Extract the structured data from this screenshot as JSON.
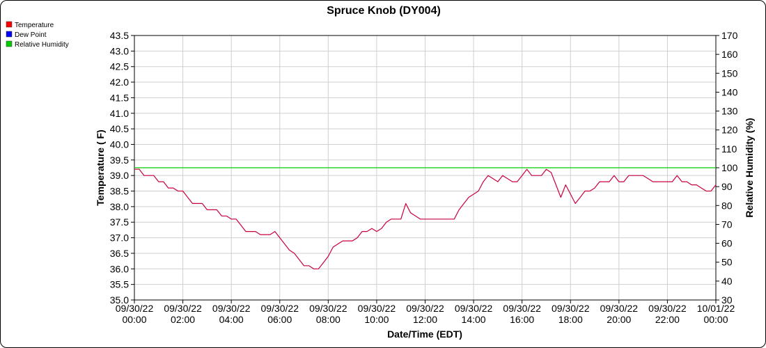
{
  "chart_data": {
    "type": "line",
    "title": "Spruce Knob (DY004)",
    "xlabel": "Date/Time (EDT)",
    "ylabel": "Temperature ( F)",
    "y2label": "Relative Humidity (%)",
    "ylim": [
      35.0,
      43.5
    ],
    "y2lim": [
      30,
      170
    ],
    "y_ticks": [
      "35.0",
      "35.5",
      "36.0",
      "36.5",
      "37.0",
      "37.5",
      "38.0",
      "38.5",
      "39.0",
      "39.5",
      "40.0",
      "40.5",
      "41.0",
      "41.5",
      "42.0",
      "42.5",
      "43.0",
      "43.5"
    ],
    "y2_ticks": [
      "30",
      "40",
      "50",
      "60",
      "70",
      "80",
      "90",
      "100",
      "110",
      "120",
      "130",
      "140",
      "150",
      "160",
      "170"
    ],
    "x_hours_range": [
      0,
      24
    ],
    "x_ticks": [
      {
        "date": "09/30/22",
        "time": "00:00"
      },
      {
        "date": "09/30/22",
        "time": "02:00"
      },
      {
        "date": "09/30/22",
        "time": "04:00"
      },
      {
        "date": "09/30/22",
        "time": "06:00"
      },
      {
        "date": "09/30/22",
        "time": "08:00"
      },
      {
        "date": "09/30/22",
        "time": "10:00"
      },
      {
        "date": "09/30/22",
        "time": "12:00"
      },
      {
        "date": "09/30/22",
        "time": "14:00"
      },
      {
        "date": "09/30/22",
        "time": "16:00"
      },
      {
        "date": "09/30/22",
        "time": "18:00"
      },
      {
        "date": "09/30/22",
        "time": "20:00"
      },
      {
        "date": "09/30/22",
        "time": "22:00"
      },
      {
        "date": "10/01/22",
        "time": "00:00"
      }
    ],
    "grid": true,
    "legend_position": "top-left",
    "legend": [
      {
        "name": "Temperature",
        "color": "#ff0000"
      },
      {
        "name": "Dew Point",
        "color": "#0000ff"
      },
      {
        "name": "Relative Humidity",
        "color": "#00cc00"
      }
    ],
    "series": [
      {
        "name": "Temperature",
        "color": "#c8003c",
        "axis": "left",
        "x": [
          0.0,
          0.2,
          0.4,
          0.6,
          0.8,
          1.0,
          1.2,
          1.4,
          1.6,
          1.8,
          2.0,
          2.2,
          2.4,
          2.6,
          2.8,
          3.0,
          3.2,
          3.4,
          3.6,
          3.8,
          4.0,
          4.2,
          4.4,
          4.6,
          4.8,
          5.0,
          5.2,
          5.4,
          5.6,
          5.8,
          6.0,
          6.2,
          6.4,
          6.6,
          6.8,
          7.0,
          7.2,
          7.4,
          7.6,
          7.8,
          8.0,
          8.2,
          8.4,
          8.6,
          8.8,
          9.0,
          9.2,
          9.4,
          9.6,
          9.8,
          10.0,
          10.2,
          10.4,
          10.6,
          10.8,
          11.0,
          11.2,
          11.4,
          11.6,
          11.8,
          12.0,
          12.2,
          12.4,
          12.6,
          12.8,
          13.0,
          13.2,
          13.4,
          13.6,
          13.8,
          14.0,
          14.2,
          14.4,
          14.6,
          14.8,
          15.0,
          15.2,
          15.4,
          15.6,
          15.8,
          16.0,
          16.2,
          16.4,
          16.6,
          16.8,
          17.0,
          17.2,
          17.4,
          17.6,
          17.8,
          18.0,
          18.2,
          18.4,
          18.6,
          18.8,
          19.0,
          19.2,
          19.4,
          19.6,
          19.8,
          20.0,
          20.2,
          20.4,
          20.6,
          20.8,
          21.0,
          21.2,
          21.4,
          21.6,
          21.8,
          22.0,
          22.2,
          22.4,
          22.6,
          22.8,
          23.0,
          23.2,
          23.4,
          23.6,
          23.8,
          24.0
        ],
        "values": [
          39.2,
          39.2,
          39.0,
          39.0,
          39.0,
          38.8,
          38.8,
          38.6,
          38.6,
          38.5,
          38.5,
          38.3,
          38.1,
          38.1,
          38.1,
          37.9,
          37.9,
          37.9,
          37.7,
          37.7,
          37.6,
          37.6,
          37.4,
          37.2,
          37.2,
          37.2,
          37.1,
          37.1,
          37.1,
          37.2,
          37.0,
          36.8,
          36.6,
          36.5,
          36.3,
          36.1,
          36.1,
          36.0,
          36.0,
          36.2,
          36.4,
          36.7,
          36.8,
          36.9,
          36.9,
          36.9,
          37.0,
          37.2,
          37.2,
          37.3,
          37.2,
          37.3,
          37.5,
          37.6,
          37.6,
          37.6,
          38.1,
          37.8,
          37.7,
          37.6,
          37.6,
          37.6,
          37.6,
          37.6,
          37.6,
          37.6,
          37.6,
          37.9,
          38.1,
          38.3,
          38.4,
          38.5,
          38.8,
          39.0,
          38.9,
          38.8,
          39.0,
          38.9,
          38.8,
          38.8,
          39.0,
          39.2,
          39.0,
          39.0,
          39.0,
          39.2,
          39.1,
          38.7,
          38.3,
          38.7,
          38.4,
          38.1,
          38.3,
          38.5,
          38.5,
          38.6,
          38.8,
          38.8,
          38.8,
          39.0,
          38.8,
          38.8,
          39.0,
          39.0,
          39.0,
          39.0,
          38.9,
          38.8,
          38.8,
          38.8,
          38.8,
          38.8,
          39.0,
          38.8,
          38.8,
          38.7,
          38.7,
          38.6,
          38.5,
          38.5,
          38.7
        ]
      },
      {
        "name": "Relative Humidity",
        "color": "#00cc00",
        "axis": "right",
        "x": [
          0,
          24
        ],
        "values": [
          100,
          100
        ]
      }
    ]
  }
}
